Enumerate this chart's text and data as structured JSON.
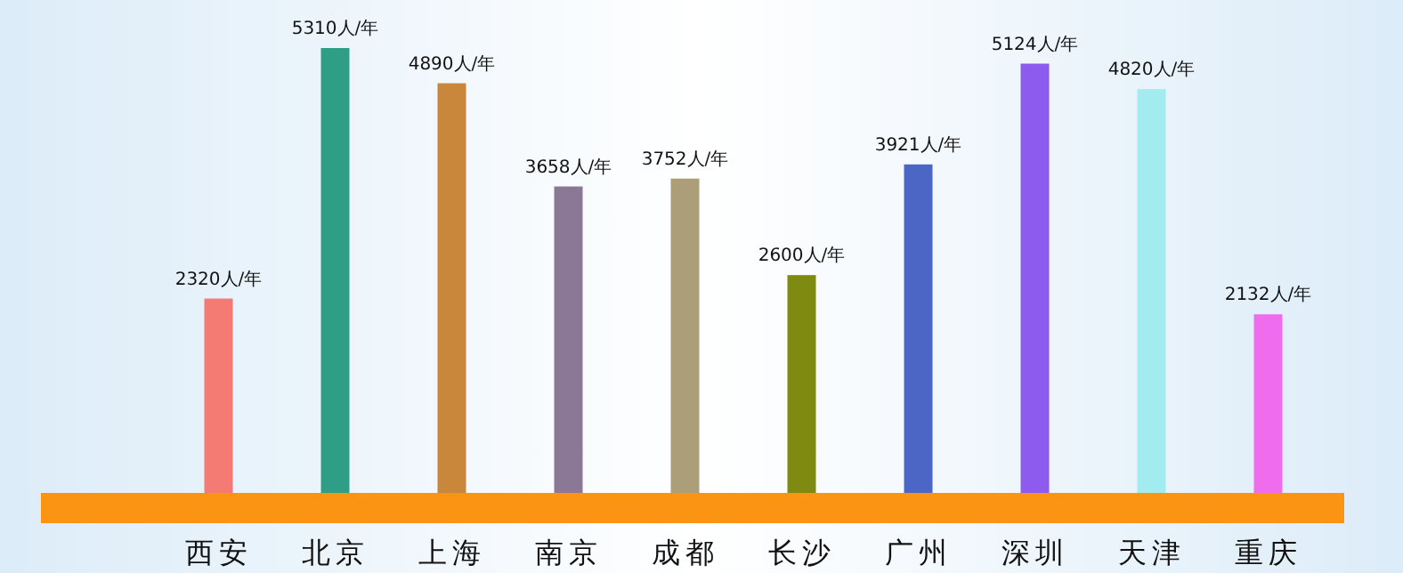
{
  "chart_data": {
    "type": "bar",
    "categories": [
      "西安",
      "北京",
      "上海",
      "南京",
      "成都",
      "长沙",
      "广州",
      "深圳",
      "天津",
      "重庆"
    ],
    "values": [
      2320,
      5310,
      4890,
      3658,
      3752,
      2600,
      3921,
      5124,
      4820,
      2132
    ],
    "colors": [
      "#f47a74",
      "#2e9e87",
      "#c8873a",
      "#8b7896",
      "#ab9e78",
      "#7f8a10",
      "#4c66c6",
      "#8e5bef",
      "#a2ecf0",
      "#ef6cef"
    ],
    "value_labels": [
      "2320人/年",
      "5310人/年",
      "4890人/年",
      "3658人/年",
      "3752人/年",
      "2600人/年",
      "3921人/年",
      "5124人/年",
      "4820人/年",
      "2132人/年"
    ]
  }
}
